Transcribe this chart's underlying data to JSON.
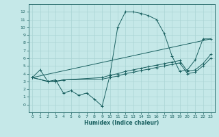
{
  "xlabel": "Humidex (Indice chaleur)",
  "xlim": [
    -0.5,
    23.5
  ],
  "ylim": [
    -1,
    13
  ],
  "xticks": [
    0,
    1,
    2,
    3,
    4,
    5,
    6,
    7,
    8,
    9,
    10,
    11,
    12,
    13,
    14,
    15,
    16,
    17,
    18,
    19,
    20,
    21,
    22,
    23
  ],
  "yticks": [
    0,
    1,
    2,
    3,
    4,
    5,
    6,
    7,
    8,
    9,
    10,
    11,
    12
  ],
  "bg_color": "#c5e8e8",
  "line_color": "#1a6060",
  "grid_color": "#aad4d4",
  "lines": [
    {
      "x": [
        0,
        1,
        2,
        3,
        4,
        5,
        6,
        7,
        8,
        9,
        10,
        11,
        12,
        13,
        14,
        15,
        16,
        17,
        18,
        19,
        20,
        21,
        22,
        23
      ],
      "y": [
        3.5,
        4.5,
        3.0,
        3.2,
        1.5,
        1.8,
        1.2,
        1.5,
        0.7,
        -0.2,
        3.8,
        10.0,
        12.0,
        12.0,
        11.8,
        11.5,
        11.0,
        9.2,
        6.3,
        4.3,
        4.5,
        5.8,
        8.5,
        8.5
      ],
      "marker": true
    },
    {
      "x": [
        0,
        23
      ],
      "y": [
        3.5,
        8.5
      ],
      "marker": false
    },
    {
      "x": [
        0,
        2,
        3,
        4,
        9,
        10,
        11,
        12,
        13,
        14,
        15,
        16,
        17,
        18,
        19,
        20,
        21,
        22,
        23
      ],
      "y": [
        3.5,
        3.0,
        3.0,
        3.2,
        3.5,
        3.8,
        4.0,
        4.3,
        4.5,
        4.7,
        4.9,
        5.1,
        5.3,
        5.5,
        5.7,
        4.3,
        4.5,
        5.3,
        6.5
      ],
      "marker": true
    },
    {
      "x": [
        0,
        2,
        3,
        4,
        9,
        10,
        11,
        12,
        13,
        14,
        15,
        16,
        17,
        18,
        19,
        20,
        21,
        22,
        23
      ],
      "y": [
        3.5,
        3.0,
        3.0,
        3.2,
        3.3,
        3.5,
        3.7,
        4.0,
        4.2,
        4.4,
        4.6,
        4.8,
        5.0,
        5.2,
        5.4,
        4.0,
        4.2,
        5.0,
        6.0
      ],
      "marker": true
    }
  ]
}
